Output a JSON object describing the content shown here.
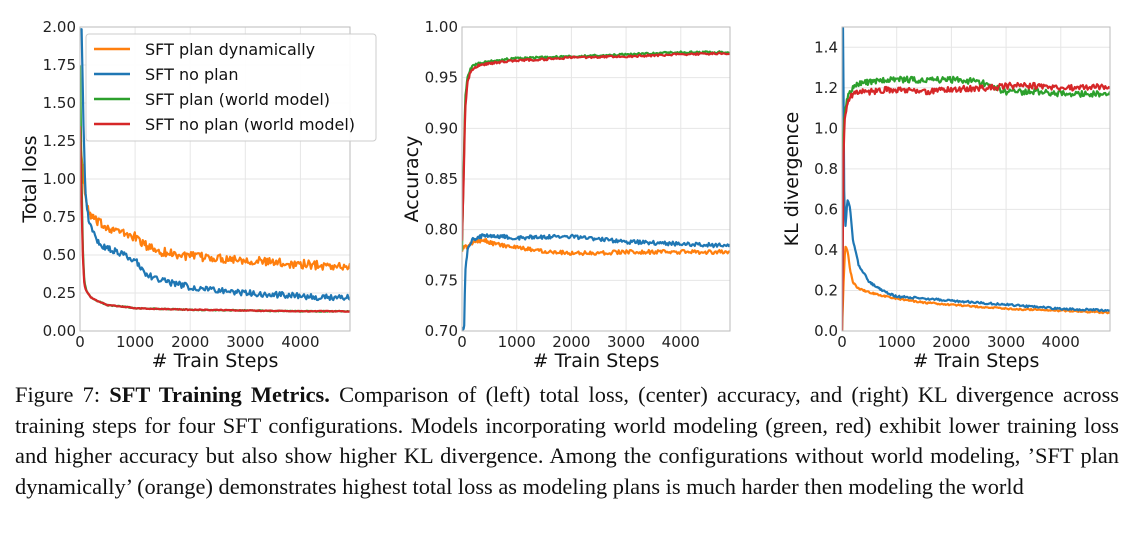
{
  "chart_data": [
    {
      "type": "line",
      "xlabel": "# Train Steps",
      "ylabel": "Total loss",
      "xlim": [
        0,
        4900
      ],
      "ylim": [
        0,
        2.0
      ],
      "xticks": [
        0,
        1000,
        2000,
        3000,
        4000
      ],
      "yticks": [
        0.0,
        0.25,
        0.5,
        0.75,
        1.0,
        1.25,
        1.5,
        1.75,
        2.0
      ],
      "ytick_labels": [
        "0.00",
        "0.25",
        "0.50",
        "0.75",
        "1.00",
        "1.25",
        "1.50",
        "1.75",
        "2.00"
      ],
      "grid": true,
      "legend": "top-right",
      "series": [
        {
          "name": "SFT plan dynamically",
          "color": "#ff7f0e",
          "x": [
            0,
            50,
            100,
            150,
            200,
            300,
            400,
            600,
            800,
            1000,
            1200,
            1500,
            2000,
            2500,
            3000,
            3500,
            4000,
            4500,
            4900
          ],
          "y": [
            1.25,
            1.05,
            0.88,
            0.78,
            0.76,
            0.72,
            0.7,
            0.67,
            0.64,
            0.62,
            0.56,
            0.52,
            0.49,
            0.48,
            0.47,
            0.45,
            0.44,
            0.43,
            0.42
          ],
          "noise": 0.03
        },
        {
          "name": "SFT no plan",
          "color": "#1f77b4",
          "x": [
            0,
            30,
            60,
            100,
            150,
            200,
            300,
            400,
            600,
            800,
            1000,
            1200,
            1500,
            2000,
            2500,
            3000,
            3500,
            4000,
            4500,
            4900
          ],
          "y": [
            2.0,
            1.98,
            1.4,
            0.9,
            0.75,
            0.68,
            0.6,
            0.56,
            0.53,
            0.5,
            0.47,
            0.37,
            0.33,
            0.29,
            0.27,
            0.25,
            0.24,
            0.23,
            0.22,
            0.22
          ],
          "noise": 0.02
        },
        {
          "name": "SFT plan (world model)",
          "color": "#2ca02c",
          "x": [
            0,
            20,
            50,
            80,
            120,
            200,
            300,
            500,
            800,
            1000,
            1500,
            2000,
            3000,
            4000,
            4900
          ],
          "y": [
            1.75,
            1.2,
            0.55,
            0.32,
            0.26,
            0.22,
            0.2,
            0.17,
            0.16,
            0.15,
            0.145,
            0.14,
            0.135,
            0.13,
            0.13
          ],
          "noise": 0.003
        },
        {
          "name": "SFT no plan (world model)",
          "color": "#d62728",
          "x": [
            0,
            20,
            50,
            80,
            120,
            200,
            300,
            500,
            800,
            1000,
            1500,
            2000,
            3000,
            4000,
            4900
          ],
          "y": [
            1.35,
            1.0,
            0.5,
            0.3,
            0.26,
            0.22,
            0.2,
            0.17,
            0.16,
            0.15,
            0.145,
            0.14,
            0.135,
            0.13,
            0.13
          ],
          "noise": 0.003
        }
      ]
    },
    {
      "type": "line",
      "xlabel": "# Train Steps",
      "ylabel": "Accuracy",
      "xlim": [
        0,
        4900
      ],
      "ylim": [
        0.7,
        1.0
      ],
      "xticks": [
        0,
        1000,
        2000,
        3000,
        4000
      ],
      "yticks": [
        0.7,
        0.75,
        0.8,
        0.85,
        0.9,
        0.95,
        1.0
      ],
      "ytick_labels": [
        "0.70",
        "0.75",
        "0.80",
        "0.85",
        "0.90",
        "0.95",
        "1.00"
      ],
      "grid": true,
      "series": [
        {
          "name": "SFT plan dynamically",
          "color": "#ff7f0e",
          "x": [
            0,
            50,
            100,
            200,
            400,
            600,
            1000,
            1500,
            2000,
            2500,
            3000,
            3500,
            4000,
            4500,
            4900
          ],
          "y": [
            0.78,
            0.785,
            0.782,
            0.788,
            0.79,
            0.786,
            0.782,
            0.779,
            0.777,
            0.777,
            0.778,
            0.778,
            0.778,
            0.778,
            0.778
          ],
          "noise": 0.002
        },
        {
          "name": "SFT no plan",
          "color": "#1f77b4",
          "x": [
            0,
            40,
            60,
            100,
            150,
            200,
            300,
            400,
            600,
            1000,
            1500,
            2000,
            2500,
            3000,
            3500,
            4000,
            4500,
            4900
          ],
          "y": [
            0.7,
            0.705,
            0.76,
            0.78,
            0.786,
            0.79,
            0.792,
            0.795,
            0.794,
            0.792,
            0.793,
            0.793,
            0.791,
            0.788,
            0.787,
            0.786,
            0.785,
            0.784
          ],
          "noise": 0.002
        },
        {
          "name": "SFT plan (world model)",
          "color": "#2ca02c",
          "x": [
            0,
            30,
            60,
            100,
            150,
            200,
            300,
            500,
            800,
            1000,
            1500,
            2000,
            3000,
            4000,
            4900
          ],
          "y": [
            0.78,
            0.86,
            0.93,
            0.95,
            0.958,
            0.962,
            0.964,
            0.966,
            0.968,
            0.969,
            0.97,
            0.971,
            0.973,
            0.975,
            0.975
          ],
          "noise": 0.001
        },
        {
          "name": "SFT no plan (world model)",
          "color": "#d62728",
          "x": [
            0,
            30,
            60,
            100,
            150,
            200,
            300,
            500,
            800,
            1000,
            1500,
            2000,
            3000,
            4000,
            4900
          ],
          "y": [
            0.79,
            0.85,
            0.92,
            0.945,
            0.955,
            0.958,
            0.962,
            0.964,
            0.966,
            0.967,
            0.968,
            0.97,
            0.971,
            0.973,
            0.974
          ],
          "noise": 0.001
        }
      ]
    },
    {
      "type": "line",
      "xlabel": "# Train Steps",
      "ylabel": "KL divergence",
      "xlim": [
        0,
        4900
      ],
      "ylim": [
        0,
        1.5
      ],
      "xticks": [
        0,
        1000,
        2000,
        3000,
        4000
      ],
      "yticks": [
        0.0,
        0.2,
        0.4,
        0.6,
        0.8,
        1.0,
        1.2,
        1.4
      ],
      "ytick_labels": [
        "0.0",
        "0.2",
        "0.4",
        "0.6",
        "0.8",
        "1.0",
        "1.2",
        "1.4"
      ],
      "grid": true,
      "series": [
        {
          "name": "SFT plan dynamically",
          "color": "#ff7f0e",
          "x": [
            0,
            30,
            60,
            100,
            150,
            200,
            300,
            500,
            800,
            1000,
            1500,
            2000,
            2500,
            3000,
            3500,
            4000,
            4500,
            4900
          ],
          "y": [
            0.0,
            0.25,
            0.42,
            0.4,
            0.3,
            0.24,
            0.21,
            0.19,
            0.17,
            0.16,
            0.14,
            0.13,
            0.12,
            0.11,
            0.105,
            0.1,
            0.095,
            0.09
          ],
          "noise": 0.004
        },
        {
          "name": "SFT no plan",
          "color": "#1f77b4",
          "x": [
            0,
            20,
            40,
            60,
            100,
            150,
            200,
            300,
            500,
            800,
            1000,
            1500,
            2000,
            2500,
            3000,
            3500,
            4000,
            4500,
            4900
          ],
          "y": [
            1.5,
            1.5,
            0.7,
            0.5,
            0.65,
            0.6,
            0.45,
            0.33,
            0.24,
            0.19,
            0.17,
            0.16,
            0.15,
            0.14,
            0.13,
            0.12,
            0.11,
            0.105,
            0.1
          ],
          "noise": 0.005
        },
        {
          "name": "SFT plan (world model)",
          "color": "#2ca02c",
          "x": [
            0,
            30,
            60,
            100,
            150,
            200,
            300,
            500,
            800,
            1000,
            1500,
            2000,
            2500,
            2800,
            3000,
            3500,
            4000,
            4500,
            4900
          ],
          "y": [
            0.0,
            1.0,
            1.1,
            1.15,
            1.18,
            1.2,
            1.22,
            1.23,
            1.24,
            1.24,
            1.24,
            1.24,
            1.23,
            1.2,
            1.18,
            1.18,
            1.17,
            1.17,
            1.17
          ],
          "noise": 0.015
        },
        {
          "name": "SFT no plan (world model)",
          "color": "#d62728",
          "x": [
            0,
            30,
            60,
            100,
            150,
            200,
            300,
            500,
            800,
            1000,
            1500,
            2000,
            2500,
            2800,
            3000,
            3500,
            4000,
            4500,
            4900
          ],
          "y": [
            0.0,
            0.9,
            1.08,
            1.12,
            1.15,
            1.17,
            1.18,
            1.18,
            1.19,
            1.19,
            1.18,
            1.19,
            1.2,
            1.2,
            1.21,
            1.21,
            1.2,
            1.2,
            1.21
          ],
          "noise": 0.015
        }
      ]
    }
  ],
  "caption": {
    "prefix": "Figure 7: ",
    "bold": "SFT Training Metrics.",
    "text": " Comparison of (left) total loss, (center) accuracy, and (right) KL divergence across training steps for four SFT configurations. Models incorporating world modeling (green, red) exhibit lower training loss and higher accuracy but also show higher KL divergence. Among the configurations without world modeling, ’SFT plan dynamically’ (orange) demonstrates highest total loss as modeling plans is much harder then modeling the world"
  }
}
